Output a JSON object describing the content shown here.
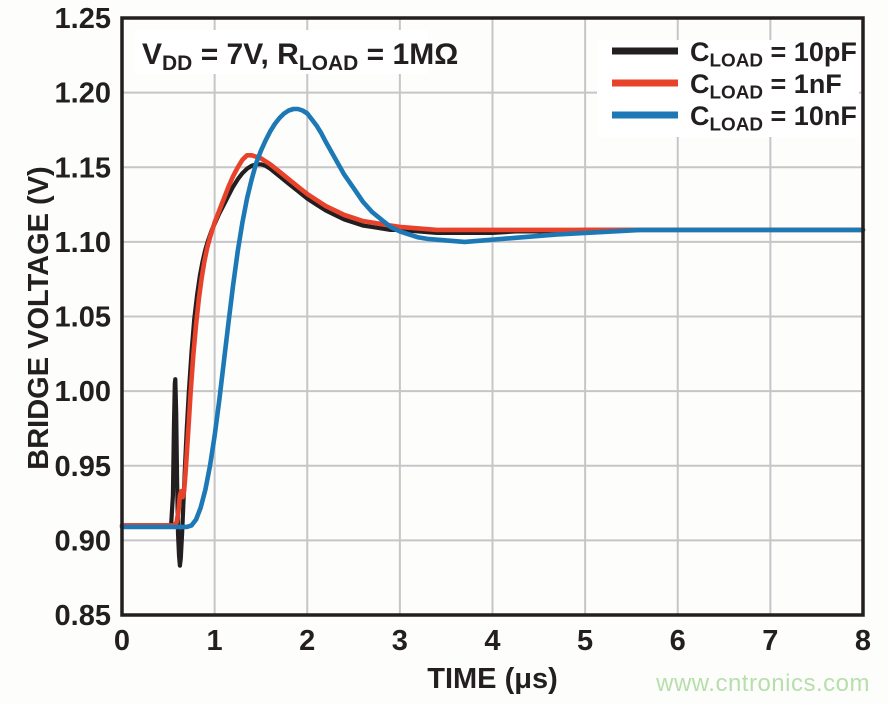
{
  "figure": {
    "background": "#fdfdfc",
    "watermark": {
      "text": "www.cntronics.com",
      "color": "#b6dfab"
    }
  },
  "chart_data": {
    "type": "line",
    "title": "",
    "xlabel": "TIME (μs)",
    "ylabel": "BRIDGE VOLTAGE (V)",
    "xlim": [
      0,
      8
    ],
    "ylim": [
      0.85,
      1.25
    ],
    "grid": true,
    "grid_color": "#c6c6c8",
    "frame_color": "#231f20",
    "text_color": "#231f20",
    "legend_position": "top-right",
    "xticks": [
      0,
      1,
      2,
      3,
      4,
      5,
      6,
      7,
      8
    ],
    "xtick_labels": [
      "0",
      "1",
      "2",
      "3",
      "4",
      "5",
      "6",
      "7",
      "8"
    ],
    "yticks": [
      0.85,
      0.9,
      0.95,
      1.0,
      1.05,
      1.1,
      1.15,
      1.2,
      1.25
    ],
    "ytick_labels": [
      "0.85",
      "0.90",
      "0.95",
      "1.00",
      "1.05",
      "1.10",
      "1.15",
      "1.20",
      "1.25"
    ],
    "annotation": {
      "text": "VDD = 7V, RLOAD = 1MΩ",
      "parts": [
        {
          "t": "V"
        },
        {
          "t": "DD",
          "sub": true
        },
        {
          "t": " = 7V, R"
        },
        {
          "t": "LOAD",
          "sub": true
        },
        {
          "t": " = 1MΩ"
        }
      ]
    },
    "series": [
      {
        "name": "CLOAD = 10pF",
        "id": "cload-10pf",
        "color": "#231f20",
        "stroke_width": 4.2,
        "label_parts": [
          {
            "t": "C"
          },
          {
            "t": "LOAD",
            "sub": true
          },
          {
            "t": " = 10pF"
          }
        ],
        "points": [
          [
            0,
            0.91
          ],
          [
            0.45,
            0.91
          ],
          [
            0.53,
            0.91
          ],
          [
            0.55,
            0.93
          ],
          [
            0.56,
            0.975
          ],
          [
            0.57,
            1.005
          ],
          [
            0.575,
            1.008
          ],
          [
            0.585,
            0.985
          ],
          [
            0.595,
            0.94
          ],
          [
            0.605,
            0.905
          ],
          [
            0.615,
            0.89
          ],
          [
            0.625,
            0.883
          ],
          [
            0.635,
            0.888
          ],
          [
            0.65,
            0.906
          ],
          [
            0.665,
            0.928
          ],
          [
            0.68,
            0.95
          ],
          [
            0.7,
            0.975
          ],
          [
            0.72,
            0.998
          ],
          [
            0.75,
            1.026
          ],
          [
            0.78,
            1.048
          ],
          [
            0.81,
            1.064
          ],
          [
            0.84,
            1.077
          ],
          [
            0.87,
            1.087
          ],
          [
            0.9,
            1.095
          ],
          [
            0.93,
            1.101
          ],
          [
            0.97,
            1.108
          ],
          [
            1.0,
            1.112
          ],
          [
            1.05,
            1.119
          ],
          [
            1.1,
            1.125
          ],
          [
            1.15,
            1.131
          ],
          [
            1.2,
            1.137
          ],
          [
            1.25,
            1.142
          ],
          [
            1.3,
            1.146
          ],
          [
            1.35,
            1.149
          ],
          [
            1.4,
            1.151
          ],
          [
            1.45,
            1.152
          ],
          [
            1.5,
            1.152
          ],
          [
            1.55,
            1.151
          ],
          [
            1.6,
            1.149
          ],
          [
            1.7,
            1.144
          ],
          [
            1.8,
            1.139
          ],
          [
            1.9,
            1.134
          ],
          [
            2.0,
            1.129
          ],
          [
            2.1,
            1.125
          ],
          [
            2.2,
            1.121
          ],
          [
            2.3,
            1.118
          ],
          [
            2.4,
            1.115
          ],
          [
            2.5,
            1.113
          ],
          [
            2.6,
            1.111
          ],
          [
            2.7,
            1.11
          ],
          [
            2.8,
            1.109
          ],
          [
            2.9,
            1.108
          ],
          [
            3.0,
            1.108
          ],
          [
            3.2,
            1.107
          ],
          [
            3.4,
            1.106
          ],
          [
            3.6,
            1.106
          ],
          [
            3.8,
            1.106
          ],
          [
            4.0,
            1.106
          ],
          [
            4.25,
            1.107
          ],
          [
            4.5,
            1.107
          ],
          [
            5.0,
            1.108
          ],
          [
            5.5,
            1.108
          ],
          [
            6.0,
            1.108
          ],
          [
            6.5,
            1.108
          ],
          [
            7.0,
            1.108
          ],
          [
            7.5,
            1.108
          ],
          [
            8.0,
            1.108
          ]
        ]
      },
      {
        "name": "CLOAD = 1nF",
        "id": "cload-1nf",
        "color": "#e8422b",
        "stroke_width": 4.6,
        "label_parts": [
          {
            "t": "C"
          },
          {
            "t": "LOAD",
            "sub": true
          },
          {
            "t": " = 1nF"
          }
        ],
        "points": [
          [
            0,
            0.91
          ],
          [
            0.45,
            0.91
          ],
          [
            0.56,
            0.91
          ],
          [
            0.59,
            0.912
          ],
          [
            0.61,
            0.92
          ],
          [
            0.625,
            0.93
          ],
          [
            0.64,
            0.933
          ],
          [
            0.655,
            0.929
          ],
          [
            0.67,
            0.933
          ],
          [
            0.685,
            0.944
          ],
          [
            0.7,
            0.958
          ],
          [
            0.72,
            0.978
          ],
          [
            0.74,
            0.998
          ],
          [
            0.77,
            1.024
          ],
          [
            0.8,
            1.045
          ],
          [
            0.83,
            1.062
          ],
          [
            0.86,
            1.076
          ],
          [
            0.89,
            1.087
          ],
          [
            0.92,
            1.096
          ],
          [
            0.95,
            1.103
          ],
          [
            1.0,
            1.113
          ],
          [
            1.05,
            1.121
          ],
          [
            1.1,
            1.129
          ],
          [
            1.15,
            1.137
          ],
          [
            1.2,
            1.144
          ],
          [
            1.25,
            1.15
          ],
          [
            1.3,
            1.155
          ],
          [
            1.35,
            1.158
          ],
          [
            1.4,
            1.158
          ],
          [
            1.45,
            1.157
          ],
          [
            1.5,
            1.156
          ],
          [
            1.55,
            1.154
          ],
          [
            1.6,
            1.152
          ],
          [
            1.7,
            1.147
          ],
          [
            1.8,
            1.142
          ],
          [
            1.9,
            1.137
          ],
          [
            2.0,
            1.132
          ],
          [
            2.1,
            1.128
          ],
          [
            2.2,
            1.124
          ],
          [
            2.3,
            1.121
          ],
          [
            2.4,
            1.118
          ],
          [
            2.5,
            1.116
          ],
          [
            2.6,
            1.114
          ],
          [
            2.7,
            1.113
          ],
          [
            2.8,
            1.112
          ],
          [
            2.9,
            1.111
          ],
          [
            3.0,
            1.11
          ],
          [
            3.2,
            1.109
          ],
          [
            3.4,
            1.108
          ],
          [
            3.6,
            1.108
          ],
          [
            3.8,
            1.108
          ],
          [
            4.0,
            1.108
          ],
          [
            4.5,
            1.108
          ],
          [
            5.0,
            1.108
          ],
          [
            5.5,
            1.108
          ],
          [
            6.0,
            1.108
          ],
          [
            6.5,
            1.108
          ],
          [
            7.0,
            1.108
          ],
          [
            7.5,
            1.108
          ],
          [
            8.0,
            1.108
          ]
        ]
      },
      {
        "name": "CLOAD = 10nF",
        "id": "cload-10nf",
        "color": "#1d79b5",
        "stroke_width": 4.6,
        "label_parts": [
          {
            "t": "C"
          },
          {
            "t": "LOAD",
            "sub": true
          },
          {
            "t": " = 10nF"
          }
        ],
        "points": [
          [
            0,
            0.909
          ],
          [
            0.45,
            0.909
          ],
          [
            0.7,
            0.909
          ],
          [
            0.75,
            0.91
          ],
          [
            0.8,
            0.914
          ],
          [
            0.85,
            0.922
          ],
          [
            0.9,
            0.934
          ],
          [
            0.95,
            0.95
          ],
          [
            1.0,
            0.97
          ],
          [
            1.05,
            0.994
          ],
          [
            1.1,
            1.02
          ],
          [
            1.15,
            1.046
          ],
          [
            1.2,
            1.071
          ],
          [
            1.25,
            1.094
          ],
          [
            1.3,
            1.113
          ],
          [
            1.35,
            1.129
          ],
          [
            1.4,
            1.142
          ],
          [
            1.45,
            1.153
          ],
          [
            1.5,
            1.161
          ],
          [
            1.55,
            1.168
          ],
          [
            1.6,
            1.174
          ],
          [
            1.65,
            1.179
          ],
          [
            1.7,
            1.183
          ],
          [
            1.75,
            1.186
          ],
          [
            1.8,
            1.188
          ],
          [
            1.85,
            1.189
          ],
          [
            1.9,
            1.189
          ],
          [
            1.95,
            1.188
          ],
          [
            2.0,
            1.186
          ],
          [
            2.05,
            1.182
          ],
          [
            2.1,
            1.178
          ],
          [
            2.15,
            1.173
          ],
          [
            2.2,
            1.167
          ],
          [
            2.3,
            1.156
          ],
          [
            2.4,
            1.145
          ],
          [
            2.5,
            1.136
          ],
          [
            2.6,
            1.127
          ],
          [
            2.7,
            1.12
          ],
          [
            2.8,
            1.115
          ],
          [
            2.9,
            1.11
          ],
          [
            3.0,
            1.107
          ],
          [
            3.1,
            1.105
          ],
          [
            3.2,
            1.103
          ],
          [
            3.3,
            1.102
          ],
          [
            3.5,
            1.101
          ],
          [
            3.7,
            1.1
          ],
          [
            3.9,
            1.101
          ],
          [
            4.1,
            1.102
          ],
          [
            4.3,
            1.103
          ],
          [
            4.5,
            1.104
          ],
          [
            4.7,
            1.105
          ],
          [
            5.0,
            1.106
          ],
          [
            5.3,
            1.107
          ],
          [
            5.6,
            1.108
          ],
          [
            6.0,
            1.108
          ],
          [
            6.5,
            1.108
          ],
          [
            7.0,
            1.108
          ],
          [
            7.5,
            1.108
          ],
          [
            8.0,
            1.108
          ]
        ]
      }
    ]
  }
}
